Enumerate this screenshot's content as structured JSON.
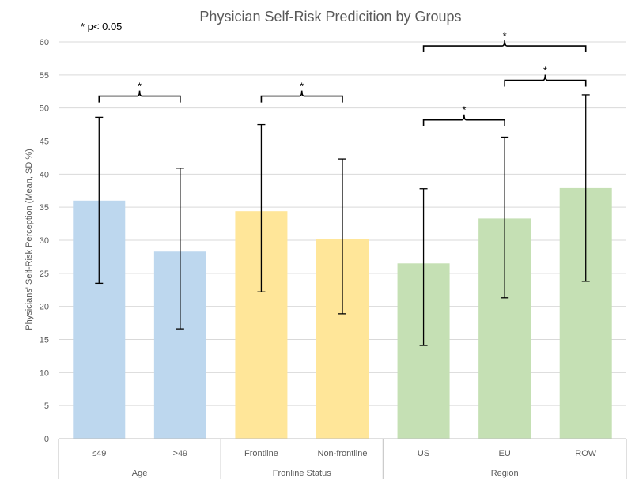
{
  "chart_data": {
    "type": "bar",
    "title": "Physician Self-Risk Predicition by Groups",
    "note": "* p< 0.05",
    "ylabel": "Physicians' Self-Risk Perception (Mean, SD %)",
    "ylim": [
      0,
      60
    ],
    "yticks": [
      0,
      5,
      10,
      15,
      20,
      25,
      30,
      35,
      40,
      45,
      50,
      55,
      60
    ],
    "grid": true,
    "categories": [
      "≤49",
      ">49",
      "Frontline",
      "Non-frontline",
      "US",
      "EU",
      "ROW"
    ],
    "groups": [
      {
        "label": "Age",
        "members": [
          0,
          1
        ],
        "color": "#BDD7EE"
      },
      {
        "label": "Fronline Status",
        "members": [
          2,
          3
        ],
        "color": "#FFE699"
      },
      {
        "label": "Region",
        "members": [
          4,
          5,
          6
        ],
        "color": "#C5E0B4"
      }
    ],
    "values": [
      36.0,
      28.3,
      34.4,
      30.2,
      26.5,
      33.3,
      37.9
    ],
    "error_low": [
      23.5,
      16.6,
      22.2,
      18.9,
      14.1,
      21.3,
      23.8
    ],
    "error_high": [
      48.6,
      40.9,
      47.5,
      42.3,
      37.8,
      45.6,
      52.0
    ],
    "significance": [
      {
        "from": 0,
        "to": 1,
        "label": "*",
        "y": 51.8
      },
      {
        "from": 2,
        "to": 3,
        "label": "*",
        "y": 51.8
      },
      {
        "from": 4,
        "to": 5,
        "label": "*",
        "y": 48.2
      },
      {
        "from": 5,
        "to": 6,
        "label": "*",
        "y": 54.2
      },
      {
        "from": 4,
        "to": 6,
        "label": "*",
        "y": 59.4
      }
    ]
  }
}
